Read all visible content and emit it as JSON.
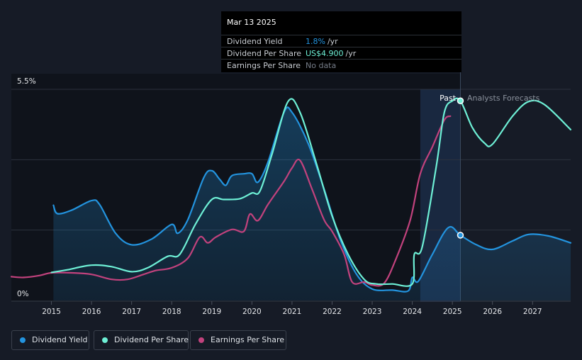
{
  "tooltip": {
    "date": "Mar 13 2025",
    "rows": [
      {
        "label": "Dividend Yield",
        "value": "1.8%",
        "unit": "/yr",
        "color": "#2394df"
      },
      {
        "label": "Dividend Per Share",
        "value": "US$4.900",
        "unit": "/yr",
        "color": "#6ef0d6"
      },
      {
        "label": "Earnings Per Share",
        "value": "No data",
        "unit": "",
        "color": "#767d89"
      }
    ]
  },
  "legend": [
    {
      "label": "Dividend Yield",
      "color": "#2394df"
    },
    {
      "label": "Dividend Per Share",
      "color": "#6ef0d6"
    },
    {
      "label": "Earnings Per Share",
      "color": "#c2427d"
    }
  ],
  "chart_data": {
    "type": "line",
    "y_top_label": "5.5%",
    "y_bottom_label": "0%",
    "ylim": [
      0,
      5.5
    ],
    "xlim": [
      2014.0,
      2027.95
    ],
    "x_ticks": [
      "2015",
      "2016",
      "2017",
      "2018",
      "2019",
      "2020",
      "2021",
      "2022",
      "2023",
      "2024",
      "2025",
      "2026",
      "2027"
    ],
    "past_label": "Past",
    "forecast_label": "Analysts Forecasts",
    "forecast_start": 2025.2,
    "forecast_shade_start": 2024.2,
    "grid": true,
    "series": [
      {
        "name": "Dividend Yield",
        "color": "#2394df",
        "area": true,
        "points": [
          [
            2015.05,
            2.48
          ],
          [
            2015.15,
            2.26
          ],
          [
            2015.5,
            2.35
          ],
          [
            2016.0,
            2.6
          ],
          [
            2016.2,
            2.5
          ],
          [
            2016.6,
            1.75
          ],
          [
            2017.0,
            1.45
          ],
          [
            2017.5,
            1.6
          ],
          [
            2018.0,
            1.98
          ],
          [
            2018.15,
            1.75
          ],
          [
            2018.4,
            2.1
          ],
          [
            2018.8,
            3.2
          ],
          [
            2019.0,
            3.38
          ],
          [
            2019.2,
            3.15
          ],
          [
            2019.35,
            3.0
          ],
          [
            2019.5,
            3.25
          ],
          [
            2019.8,
            3.3
          ],
          [
            2020.0,
            3.3
          ],
          [
            2020.15,
            3.08
          ],
          [
            2020.4,
            3.6
          ],
          [
            2020.8,
            4.9
          ],
          [
            2021.0,
            4.9
          ],
          [
            2021.4,
            4.1
          ],
          [
            2021.8,
            2.9
          ],
          [
            2022.2,
            1.6
          ],
          [
            2022.6,
            0.7
          ],
          [
            2023.0,
            0.3
          ],
          [
            2023.5,
            0.27
          ],
          [
            2023.9,
            0.25
          ],
          [
            2024.0,
            0.6
          ],
          [
            2024.15,
            0.5
          ],
          [
            2024.5,
            1.2
          ],
          [
            2024.9,
            1.9
          ],
          [
            2025.2,
            1.7
          ],
          [
            2025.6,
            1.45
          ],
          [
            2026.0,
            1.33
          ],
          [
            2026.5,
            1.55
          ],
          [
            2026.9,
            1.72
          ],
          [
            2027.4,
            1.68
          ],
          [
            2027.95,
            1.5
          ]
        ]
      },
      {
        "name": "Dividend Per Share",
        "color": "#6ef0d6",
        "area": false,
        "points": [
          [
            2015.0,
            0.73
          ],
          [
            2015.4,
            0.8
          ],
          [
            2016.0,
            0.92
          ],
          [
            2016.5,
            0.88
          ],
          [
            2017.0,
            0.75
          ],
          [
            2017.4,
            0.85
          ],
          [
            2017.9,
            1.15
          ],
          [
            2018.2,
            1.2
          ],
          [
            2018.6,
            2.0
          ],
          [
            2019.0,
            2.63
          ],
          [
            2019.3,
            2.63
          ],
          [
            2019.7,
            2.65
          ],
          [
            2020.0,
            2.8
          ],
          [
            2020.2,
            2.85
          ],
          [
            2020.5,
            3.8
          ],
          [
            2020.9,
            5.18
          ],
          [
            2021.2,
            4.9
          ],
          [
            2021.6,
            3.6
          ],
          [
            2022.0,
            2.2
          ],
          [
            2022.4,
            1.2
          ],
          [
            2022.8,
            0.55
          ],
          [
            2023.1,
            0.43
          ],
          [
            2023.5,
            0.43
          ],
          [
            2024.0,
            0.43
          ],
          [
            2024.05,
            1.2
          ],
          [
            2024.25,
            1.4
          ],
          [
            2024.6,
            3.5
          ],
          [
            2024.8,
            4.9
          ],
          [
            2025.0,
            5.2
          ],
          [
            2025.2,
            5.2
          ],
          [
            2025.5,
            4.5
          ],
          [
            2025.8,
            4.1
          ],
          [
            2026.0,
            4.07
          ],
          [
            2026.5,
            4.8
          ],
          [
            2026.9,
            5.18
          ],
          [
            2027.3,
            5.1
          ],
          [
            2027.95,
            4.45
          ]
        ]
      },
      {
        "name": "Earnings Per Share",
        "color": "#c2427d",
        "area": false,
        "points": [
          [
            2014.0,
            0.62
          ],
          [
            2014.3,
            0.6
          ],
          [
            2014.7,
            0.65
          ],
          [
            2015.0,
            0.72
          ],
          [
            2015.5,
            0.72
          ],
          [
            2016.0,
            0.68
          ],
          [
            2016.5,
            0.55
          ],
          [
            2016.9,
            0.55
          ],
          [
            2017.3,
            0.68
          ],
          [
            2017.6,
            0.78
          ],
          [
            2018.0,
            0.85
          ],
          [
            2018.4,
            1.1
          ],
          [
            2018.7,
            1.65
          ],
          [
            2018.9,
            1.5
          ],
          [
            2019.1,
            1.65
          ],
          [
            2019.5,
            1.85
          ],
          [
            2019.8,
            1.8
          ],
          [
            2019.95,
            2.25
          ],
          [
            2020.15,
            2.08
          ],
          [
            2020.4,
            2.5
          ],
          [
            2020.8,
            3.1
          ],
          [
            2021.0,
            3.45
          ],
          [
            2021.2,
            3.65
          ],
          [
            2021.5,
            2.9
          ],
          [
            2021.8,
            2.1
          ],
          [
            2022.0,
            1.8
          ],
          [
            2022.3,
            1.2
          ],
          [
            2022.5,
            0.48
          ],
          [
            2022.8,
            0.48
          ],
          [
            2023.0,
            0.4
          ],
          [
            2023.3,
            0.45
          ],
          [
            2023.6,
            1.1
          ],
          [
            2023.95,
            2.1
          ],
          [
            2024.2,
            3.3
          ],
          [
            2024.5,
            4.0
          ],
          [
            2024.8,
            4.7
          ],
          [
            2024.95,
            4.8
          ]
        ]
      }
    ]
  }
}
